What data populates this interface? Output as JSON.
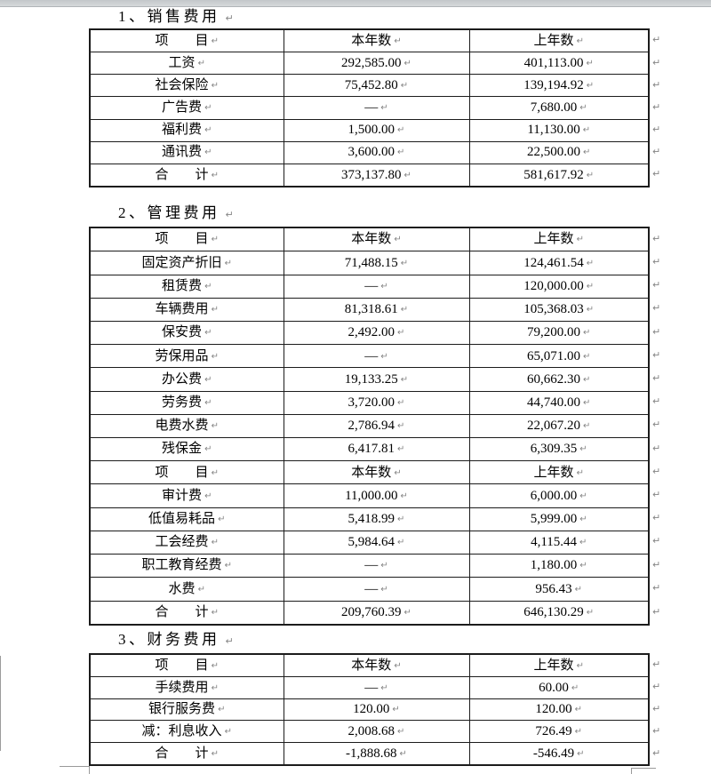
{
  "marks": {
    "cell_end_mark": "↵",
    "row_end_mark": "↵",
    "title_end_mark": "↵"
  },
  "colors": {
    "table_border": "#1c1c1c",
    "formatting_mark": "#858585",
    "top_bar": "#c9cdd0"
  },
  "sections": [
    {
      "title": "1、销售费用",
      "columns": [
        "项　　目",
        "本年数",
        "上年数"
      ],
      "rows": [
        [
          "工资",
          "292,585.00",
          "401,113.00"
        ],
        [
          "社会保险",
          "75,452.80",
          "139,194.92"
        ],
        [
          "广告费",
          "—",
          "7,680.00"
        ],
        [
          "福利费",
          "1,500.00",
          "11,130.00"
        ],
        [
          "通讯费",
          "3,600.00",
          "22,500.00"
        ],
        [
          "合　　计",
          "373,137.80",
          "581,617.92"
        ]
      ]
    },
    {
      "title": "2、管理费用",
      "columns": [
        "项　　目",
        "本年数",
        "上年数"
      ],
      "rows": [
        [
          "固定资产折旧",
          "71,488.15",
          "124,461.54"
        ],
        [
          "租赁费",
          "—",
          "120,000.00"
        ],
        [
          "车辆费用",
          "81,318.61",
          "105,368.03"
        ],
        [
          "保安费",
          "2,492.00",
          "79,200.00"
        ],
        [
          "劳保用品",
          "—",
          "65,071.00"
        ],
        [
          "办公费",
          "19,133.25",
          "60,662.30"
        ],
        [
          "劳务费",
          "3,720.00",
          "44,740.00"
        ],
        [
          "电费水费",
          "2,786.94",
          "22,067.20"
        ],
        [
          "残保金",
          "6,417.81",
          "6,309.35"
        ],
        [
          "项　　目",
          "本年数",
          "上年数"
        ],
        [
          "审计费",
          "11,000.00",
          "6,000.00"
        ],
        [
          "低值易耗品",
          "5,418.99",
          "5,999.00"
        ],
        [
          "工会经费",
          "5,984.64",
          "4,115.44"
        ],
        [
          "职工教育经费",
          "—",
          "1,180.00"
        ],
        [
          "水费",
          "—",
          "956.43"
        ],
        [
          "合　　计",
          "209,760.39",
          "646,130.29"
        ]
      ]
    },
    {
      "title": "3、财务费用",
      "columns": [
        "项　　目",
        "本年数",
        "上年数"
      ],
      "rows": [
        [
          "手续费用",
          "—",
          "60.00"
        ],
        [
          "银行服务费",
          "120.00",
          "120.00"
        ],
        [
          "减：利息收入",
          "2,008.68",
          "726.49"
        ],
        [
          "合　　计",
          "-1,888.68",
          "-546.49"
        ]
      ]
    }
  ]
}
